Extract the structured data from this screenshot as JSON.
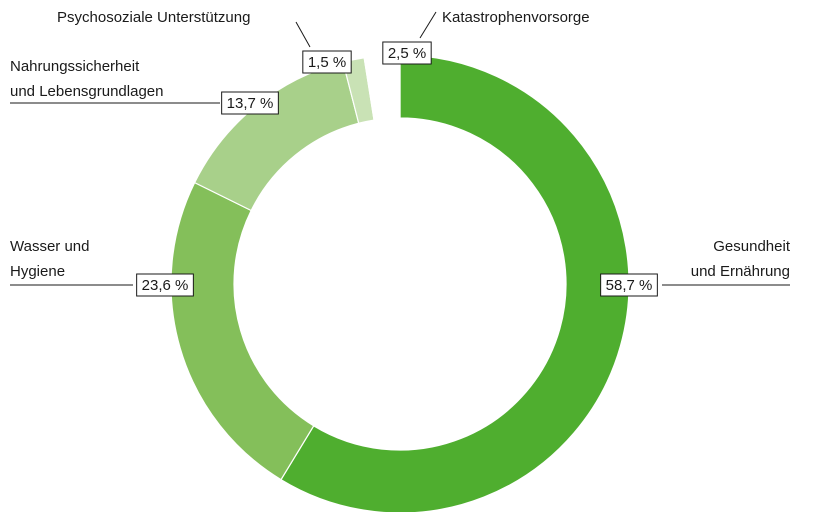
{
  "chart_data": {
    "type": "donut",
    "categories": [
      [
        "Gesundheit",
        "und Ernährung"
      ],
      [
        "Wasser und",
        "Hygiene"
      ],
      [
        "Nahrungssicherheit",
        "und Lebensgrundlagen"
      ],
      [
        "Psychosoziale Unterstützung"
      ],
      [
        "Katastrophenvorsorge"
      ]
    ],
    "values": [
      58.7,
      23.6,
      13.7,
      1.5,
      2.5
    ],
    "value_labels": [
      "58,7 %",
      "23,6 %",
      "13,7 %",
      "1,5 %",
      "2,5 %"
    ],
    "colors": [
      "#4fae2f",
      "#84bf5a",
      "#a8d08a",
      "#c9e2b5",
      "#ffffff"
    ]
  }
}
